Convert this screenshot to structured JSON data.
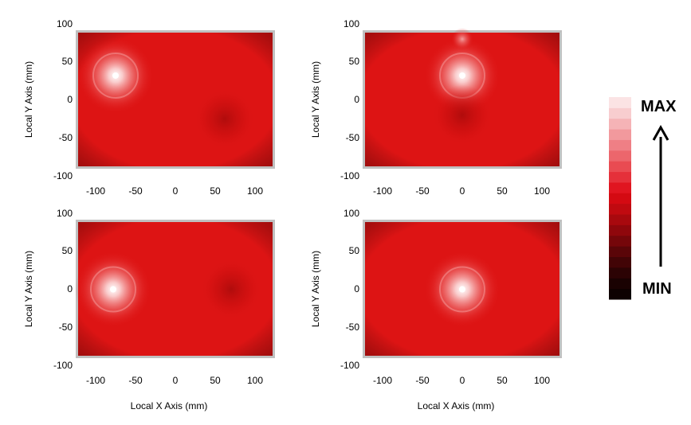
{
  "chart_data": {
    "type": "heatmap",
    "panels": [
      {
        "xlabel": "",
        "ylabel": "Local Y Axis (mm)",
        "xlim": [
          -125,
          125
        ],
        "ylim": [
          -100,
          100
        ],
        "xticks": [
          "-100",
          "-50",
          "0",
          "50",
          "100"
        ],
        "yticks": [
          "100",
          "50",
          "0",
          "-50",
          "-100"
        ],
        "hotspots": [
          {
            "x": -75,
            "y": 32,
            "intensity": "high"
          },
          {
            "x": 62,
            "y": -25,
            "intensity": "low"
          }
        ]
      },
      {
        "xlabel": "",
        "ylabel": "Local Y Axis (mm)",
        "xlim": [
          -125,
          125
        ],
        "ylim": [
          -100,
          100
        ],
        "xticks": [
          "-100",
          "-50",
          "0",
          "50",
          "100"
        ],
        "yticks": [
          "100",
          "50",
          "0",
          "-50",
          "-100"
        ],
        "hotspots": [
          {
            "x": 0,
            "y": 32,
            "intensity": "high"
          },
          {
            "x": 0,
            "y": 80,
            "intensity": "medium"
          },
          {
            "x": 0,
            "y": -20,
            "intensity": "low"
          }
        ]
      },
      {
        "xlabel": "Local X Axis (mm)",
        "ylabel": "Local Y Axis (mm)",
        "xlim": [
          -125,
          125
        ],
        "ylim": [
          -100,
          100
        ],
        "xticks": [
          "-100",
          "-50",
          "0",
          "50",
          "100"
        ],
        "yticks": [
          "100",
          "50",
          "0",
          "-50",
          "-100"
        ],
        "hotspots": [
          {
            "x": -78,
            "y": 0,
            "intensity": "high"
          },
          {
            "x": 70,
            "y": 0,
            "intensity": "low"
          }
        ]
      },
      {
        "xlabel": "Local X Axis (mm)",
        "ylabel": "Local Y Axis (mm)",
        "xlim": [
          -125,
          125
        ],
        "ylim": [
          -100,
          100
        ],
        "xticks": [
          "-100",
          "-50",
          "0",
          "50",
          "100"
        ],
        "yticks": [
          "100",
          "50",
          "0",
          "-50",
          "-100"
        ],
        "hotspots": [
          {
            "x": 0,
            "y": 0,
            "intensity": "high"
          }
        ]
      }
    ],
    "colorbar": {
      "max_label": "MAX",
      "min_label": "MIN",
      "colors": [
        "#fbe3e4",
        "#f8cdcf",
        "#f5b3b6",
        "#f2999d",
        "#ef7f85",
        "#ec666c",
        "#e94b52",
        "#e5303a",
        "#e01520",
        "#d40a12",
        "#c00a10",
        "#a8090e",
        "#8f070c",
        "#75060a",
        "#5a0508",
        "#420406",
        "#2c0304",
        "#1a0202",
        "#0d0101"
      ]
    },
    "colors": {
      "base_field": "#dd1414",
      "frame": "#c0c0c0"
    }
  }
}
